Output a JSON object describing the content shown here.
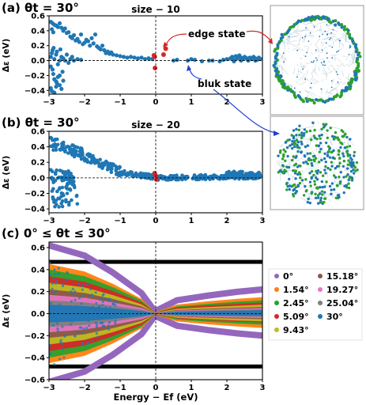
{
  "figure": {
    "panel_a_label": "(a) θt = 30°",
    "panel_b_label": "(b) θt = 30°",
    "panel_c_label": "(c) 0° ≤ θt ≤ 30°",
    "panel_a_title": "size − 10",
    "panel_b_title": "size − 20",
    "edge_state_label": "edge state",
    "bulk_state_label": "bluk state",
    "ylabel": "Δε (eV)",
    "xlabel": "Energy − Ef (eV)",
    "edge_color": "#d62728",
    "bulk_color": "#1f77b4",
    "annotation_red": "#d62728",
    "annotation_blue": "#1f3fd4"
  },
  "chart_data": [
    {
      "id": "a",
      "type": "scatter",
      "title": "size − 10",
      "xlabel": "",
      "ylabel": "Δε (eV)",
      "xlim": [
        -3,
        3
      ],
      "ylim": [
        -0.45,
        0.6
      ],
      "xticks": [
        -3,
        -2,
        -1,
        0,
        1,
        2,
        3
      ],
      "yticks": [
        -0.4,
        -0.2,
        0.0,
        0.2,
        0.4,
        0.6
      ],
      "ytick_labels": [
        "−0.4",
        "−0.2",
        "0.0",
        "0.2",
        "0.4",
        "0.6"
      ],
      "xtick_labels": [
        "−3",
        "−2",
        "−1",
        "0",
        "1",
        "2",
        "3"
      ],
      "reference_lines": {
        "x": 0,
        "y": 0,
        "style": "dashed"
      },
      "series": [
        {
          "name": "bluk state",
          "color": "#1f77b4",
          "points": [
            [
              -2.95,
              0.52
            ],
            [
              -2.9,
              0.5
            ],
            [
              -2.85,
              0.48
            ],
            [
              -2.8,
              0.47
            ],
            [
              -2.75,
              0.45
            ],
            [
              -2.7,
              0.5
            ],
            [
              -2.65,
              0.44
            ],
            [
              -2.92,
              0.42
            ],
            [
              -2.88,
              0.38
            ],
            [
              -2.6,
              0.4
            ],
            [
              -2.55,
              0.43
            ],
            [
              -2.5,
              0.37
            ],
            [
              -2.45,
              0.38
            ],
            [
              -2.4,
              0.32
            ],
            [
              -2.35,
              0.3
            ],
            [
              -2.3,
              0.34
            ],
            [
              -2.25,
              0.27
            ],
            [
              -2.2,
              0.29
            ],
            [
              -2.15,
              0.25
            ],
            [
              -2.1,
              0.35
            ],
            [
              -2.05,
              0.22
            ],
            [
              -2.0,
              0.24
            ],
            [
              -1.95,
              0.28
            ],
            [
              -1.9,
              0.26
            ],
            [
              -1.85,
              0.2
            ],
            [
              -1.8,
              0.3
            ],
            [
              -1.75,
              0.23
            ],
            [
              -1.7,
              0.35
            ],
            [
              -1.65,
              0.19
            ],
            [
              -1.6,
              0.17
            ],
            [
              -1.55,
              0.15
            ],
            [
              -1.5,
              0.2
            ],
            [
              -1.45,
              0.14
            ],
            [
              -1.4,
              0.1
            ],
            [
              -1.35,
              0.12
            ],
            [
              -1.3,
              0.09
            ],
            [
              -1.25,
              0.11
            ],
            [
              -1.2,
              0.08
            ],
            [
              -1.1,
              0.07
            ],
            [
              -1.0,
              0.06
            ],
            [
              -0.9,
              0.05
            ],
            [
              -0.8,
              0.04
            ],
            [
              -0.7,
              0.05
            ],
            [
              -0.6,
              0.04
            ],
            [
              -0.5,
              0.03
            ],
            [
              -0.4,
              0.04
            ],
            [
              -0.3,
              0.02
            ],
            [
              -0.2,
              0.03
            ],
            [
              -0.1,
              0.02
            ],
            [
              -2.95,
              0.05
            ],
            [
              -2.92,
              0.1
            ],
            [
              -2.9,
              0.14
            ],
            [
              -2.87,
              0.17
            ],
            [
              -2.85,
              0.02
            ],
            [
              -2.8,
              0.08
            ],
            [
              -2.78,
              0.12
            ],
            [
              -2.75,
              -0.05
            ],
            [
              -2.7,
              0.0
            ],
            [
              -2.68,
              0.15
            ],
            [
              -2.65,
              0.05
            ],
            [
              -2.6,
              0.03
            ],
            [
              -2.55,
              0.0
            ],
            [
              -2.5,
              0.08
            ],
            [
              -2.45,
              -0.03
            ],
            [
              -2.4,
              0.02
            ],
            [
              -2.35,
              0.05
            ],
            [
              -2.3,
              0.0
            ],
            [
              -2.2,
              0.02
            ],
            [
              -2.1,
              0.01
            ],
            [
              -2.95,
              -0.08
            ],
            [
              -2.9,
              -0.12
            ],
            [
              -2.88,
              -0.18
            ],
            [
              -2.85,
              -0.25
            ],
            [
              -2.8,
              -0.28
            ],
            [
              -2.78,
              -0.3
            ],
            [
              -2.75,
              -0.22
            ],
            [
              -2.7,
              -0.33
            ],
            [
              -2.65,
              -0.38
            ],
            [
              -2.6,
              -0.27
            ],
            [
              -2.95,
              -0.37
            ],
            [
              -2.92,
              -0.41
            ],
            [
              -2.85,
              -0.43
            ],
            [
              -2.8,
              -0.35
            ],
            [
              -2.7,
              -0.2
            ],
            [
              -2.62,
              -0.15
            ],
            [
              0.5,
              0.0
            ],
            [
              0.6,
              0.01
            ],
            [
              0.9,
              0.0
            ],
            [
              1.0,
              0.02
            ],
            [
              1.1,
              0.01
            ],
            [
              1.3,
              -0.01
            ],
            [
              1.5,
              0.0
            ],
            [
              1.6,
              0.0
            ],
            [
              1.8,
              -0.01
            ],
            [
              1.9,
              0.01
            ],
            [
              2.0,
              0.02
            ],
            [
              2.1,
              0.03
            ],
            [
              2.15,
              0.05
            ],
            [
              2.2,
              0.01
            ],
            [
              2.25,
              0.06
            ],
            [
              2.3,
              0.03
            ],
            [
              2.35,
              0.07
            ],
            [
              2.4,
              0.04
            ],
            [
              2.45,
              0.02
            ],
            [
              2.5,
              0.05
            ],
            [
              2.55,
              0.03
            ],
            [
              2.6,
              0.0
            ],
            [
              2.65,
              0.04
            ],
            [
              2.7,
              0.02
            ],
            [
              2.75,
              0.05
            ],
            [
              2.8,
              0.03
            ],
            [
              2.85,
              0.01
            ],
            [
              2.9,
              0.04
            ],
            [
              2.95,
              0.02
            ],
            [
              2.2,
              -0.01
            ],
            [
              2.4,
              0.0
            ],
            [
              2.6,
              0.03
            ],
            [
              2.8,
              0.0
            ]
          ]
        },
        {
          "name": "edge state",
          "color": "#d62728",
          "points": [
            [
              -0.05,
              0.07
            ],
            [
              -0.03,
              0.05
            ],
            [
              -0.02,
              -0.1
            ],
            [
              0.22,
              0.08
            ],
            [
              0.28,
              0.16
            ]
          ]
        }
      ]
    },
    {
      "id": "b",
      "type": "scatter",
      "title": "size − 20",
      "xlabel": "",
      "ylabel": "Δε (eV)",
      "xlim": [
        -3,
        3
      ],
      "ylim": [
        -0.45,
        0.6
      ],
      "xticks": [
        -3,
        -2,
        -1,
        0,
        1,
        2,
        3
      ],
      "yticks": [
        -0.4,
        -0.2,
        0.0,
        0.2,
        0.4,
        0.6
      ],
      "ytick_labels": [
        "−0.4",
        "−0.2",
        "0.0",
        "0.2",
        "0.4",
        "0.6"
      ],
      "xtick_labels": [
        "−3",
        "−2",
        "−1",
        "0",
        "1",
        "2",
        "3"
      ],
      "reference_lines": {
        "x": 0,
        "y": 0,
        "style": "dashed"
      },
      "series": [
        {
          "name": "bluk state",
          "color": "#1f77b4",
          "bands": [
            {
              "x": [
                -2.95,
                -2.0
              ],
              "y_center_start": 0.45,
              "y_center_end": 0.3,
              "spread": 0.08
            },
            {
              "x": [
                -2.0,
                -1.0
              ],
              "y_center_start": 0.28,
              "y_center_end": 0.08,
              "spread": 0.06
            },
            {
              "x": [
                -1.0,
                -0.05
              ],
              "y_center_start": 0.07,
              "y_center_end": 0.01,
              "spread": 0.03
            },
            {
              "x": [
                -2.95,
                -2.3
              ],
              "y_center_start": 0.05,
              "y_center_end": 0.0,
              "spread": 0.08
            },
            {
              "x": [
                -2.95,
                -2.2
              ],
              "y_center_start": -0.2,
              "y_center_end": -0.15,
              "spread": 0.2
            },
            {
              "x": [
                0.05,
                2.95
              ],
              "y_center_start": 0.0,
              "y_center_end": 0.02,
              "spread": 0.03
            },
            {
              "x": [
                2.0,
                2.95
              ],
              "y_center_start": 0.05,
              "y_center_end": 0.03,
              "spread": 0.04
            }
          ]
        },
        {
          "name": "edge state",
          "color": "#d62728",
          "points": [
            [
              -0.03,
              0.06
            ],
            [
              0.0,
              0.03
            ],
            [
              0.02,
              -0.02
            ]
          ]
        }
      ]
    },
    {
      "id": "c",
      "type": "area",
      "title": "",
      "xlabel": "Energy − Ef (eV)",
      "ylabel": "Δε (eV)",
      "xlim": [
        -3,
        3
      ],
      "ylim": [
        -0.6,
        0.65
      ],
      "xticks": [
        -3,
        -2,
        -1,
        0,
        1,
        2,
        3
      ],
      "yticks": [
        -0.6,
        -0.4,
        -0.2,
        0.0,
        0.2,
        0.4,
        0.6
      ],
      "ytick_labels": [
        "−0.6",
        "−0.4",
        "−0.2",
        "0.0",
        "0.2",
        "0.4",
        "0.6"
      ],
      "xtick_labels": [
        "−3",
        "−2",
        "−1",
        "0",
        "1",
        "2",
        "3"
      ],
      "reference_lines": {
        "x": 0,
        "y": 0,
        "style": "dashed"
      },
      "series": [
        {
          "name": "0°",
          "color": "#9467bd",
          "envelope": {
            "left_max": 0.62,
            "left_min": -0.62,
            "right_max": 0.22,
            "right_min": -0.2
          },
          "flat_bands": [
            0.47,
            -0.48
          ]
        },
        {
          "name": "1.54°",
          "color": "#ff7f0e",
          "envelope": {
            "left_max": 0.45,
            "left_min": -0.45,
            "right_max": 0.15,
            "right_min": -0.13
          }
        },
        {
          "name": "2.45°",
          "color": "#2ca02c",
          "envelope": {
            "left_max": 0.4,
            "left_min": -0.4,
            "right_max": 0.12,
            "right_min": -0.1
          }
        },
        {
          "name": "5.09°",
          "color": "#d62728",
          "envelope": {
            "left_max": 0.34,
            "left_min": -0.34,
            "right_max": 0.1,
            "right_min": -0.08
          }
        },
        {
          "name": "9.43°",
          "color": "#bcbd22",
          "envelope": {
            "left_max": 0.28,
            "left_min": -0.28,
            "right_max": 0.08,
            "right_min": -0.07
          }
        },
        {
          "name": "15.18°",
          "color": "#8c564b",
          "envelope": {
            "left_max": 0.22,
            "left_min": -0.22,
            "right_max": 0.06,
            "right_min": -0.05
          }
        },
        {
          "name": "19.27°",
          "color": "#e377c2",
          "envelope": {
            "left_max": 0.17,
            "left_min": -0.17,
            "right_max": 0.05,
            "right_min": -0.04
          }
        },
        {
          "name": "25.04°",
          "color": "#7f7f7f",
          "envelope": {
            "left_max": 0.12,
            "left_min": -0.12,
            "right_max": 0.04,
            "right_min": -0.03
          }
        },
        {
          "name": "30°",
          "color": "#1f77b4",
          "envelope": {
            "left_max": 0.08,
            "left_min": -0.08,
            "right_max": 0.03,
            "right_min": -0.02
          }
        }
      ]
    }
  ]
}
